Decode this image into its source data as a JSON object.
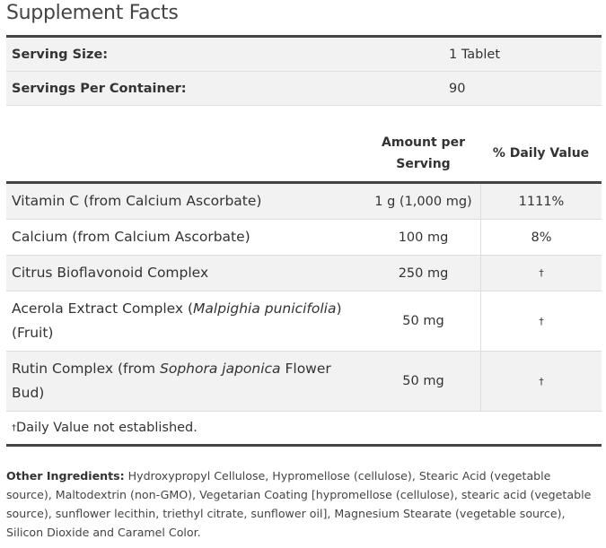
{
  "title": "Supplement Facts",
  "serving": {
    "size_label": "Serving Size:",
    "size_value": "1 Tablet",
    "per_container_label": "Servings Per Container:",
    "per_container_value": "90"
  },
  "table": {
    "header_amount_line1": "Amount per",
    "header_amount_line2": "Serving",
    "header_dv": "% Daily Value",
    "rows": [
      {
        "name": "Vitamin C (from Calcium Ascorbate)",
        "amount": "1 g (1,000 mg)",
        "dv": "1111%"
      },
      {
        "name": "Calcium (from Calcium Ascorbate)",
        "amount": "100 mg",
        "dv": "8%"
      },
      {
        "name": "Citrus Bioflavonoid Complex",
        "amount": "250 mg",
        "dv": "†"
      },
      {
        "name_pre": "Acerola Extract Complex (",
        "name_italic": "Malpighia punicifolia",
        "name_post": ")",
        "name_line2": "(Fruit)",
        "amount": "50 mg",
        "dv": "†"
      },
      {
        "name_pre": "Rutin Complex (from ",
        "name_italic": "Sophora japonica",
        "name_post": " Flower",
        "name_line2": "Bud)",
        "amount": "50 mg",
        "dv": "†"
      }
    ]
  },
  "footnote": {
    "dagger": "†",
    "text": "Daily Value not established."
  },
  "ingredients": {
    "label": "Other Ingredients:",
    "text": " Hydroxypropyl Cellulose, Hypromellose (cellulose), Stearic Acid (vegetable source), Maltodextrin (non-GMO), Vegetarian Coating [hypromellose (cellulose), stearic acid (vegetable source), sunflower lecithin, triethyl citrate, sunflower oil], Magnesium Stearate (vegetable source), Silicon Dioxide and Caramel Color."
  }
}
